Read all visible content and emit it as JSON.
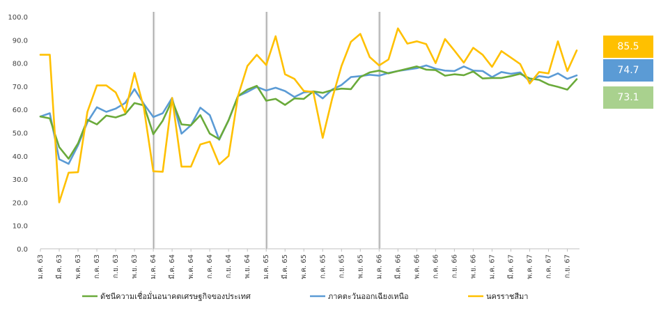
{
  "chart_data": {
    "type": "line",
    "ylim": [
      0,
      100
    ],
    "yticks": [
      "0.0",
      "10.0",
      "20.0",
      "30.0",
      "40.0",
      "50.0",
      "60.0",
      "70.0",
      "80.0",
      "90.0",
      "100.0"
    ],
    "x": [
      "ม.ค. 63",
      "ก.พ. 63",
      "มี.ค. 63",
      "เม.ย. 63",
      "พ.ค. 63",
      "มิ.ย. 63",
      "ก.ค. 63",
      "ส.ค. 63",
      "ก.ย. 63",
      "ต.ค. 63",
      "พ.ย. 63",
      "ธ.ค. 63",
      "ม.ค. 64",
      "ก.พ. 64",
      "มี.ค. 64",
      "เม.ย. 64",
      "พ.ค. 64",
      "มิ.ย. 64",
      "ก.ค. 64",
      "ส.ค. 64",
      "ก.ย. 64",
      "ต.ค. 64",
      "พ.ย. 64",
      "ธ.ค. 64",
      "ม.ค. 65",
      "ก.พ. 65",
      "มี.ค. 65",
      "เม.ย. 65",
      "พ.ค. 65",
      "มิ.ย. 65",
      "ก.ค. 65",
      "ส.ค. 65",
      "ก.ย. 65",
      "ต.ค. 65",
      "พ.ย. 65",
      "ธ.ค. 65",
      "ม.ค. 66",
      "ก.พ. 66",
      "มี.ค. 66",
      "เม.ย. 66",
      "พ.ค. 66",
      "มิ.ย. 66",
      "ก.ค. 66",
      "ส.ค. 66",
      "ก.ย. 66",
      "ต.ค. 66",
      "พ.ย. 66",
      "ธ.ค. 66",
      "ม.ค. 67",
      "ก.พ. 67",
      "มี.ค. 67",
      "เม.ย. 67",
      "พ.ค. 67",
      "มิ.ย. 67",
      "ก.ค. 67",
      "ส.ค. 67",
      "ก.ย. 67",
      "ต.ค. 67"
    ],
    "xtick_labels": [
      "ม.ค. 63",
      "มี.ค. 63",
      "พ.ค. 63",
      "ก.ค. 63",
      "ก.ย. 63",
      "พ.ย. 63",
      "ม.ค. 64",
      "มี.ค. 64",
      "พ.ค. 64",
      "ก.ค. 64",
      "ก.ย. 64",
      "พ.ย. 64",
      "ม.ค. 65",
      "มี.ค. 65",
      "พ.ค. 65",
      "ก.ค. 65",
      "ก.ย. 65",
      "พ.ย. 65",
      "ม.ค. 66",
      "มี.ค. 66",
      "พ.ค. 66",
      "ก.ค. 66",
      "ก.ย. 66",
      "พ.ย. 66",
      "ม.ค. 67",
      "มี.ค. 67",
      "พ.ค. 67",
      "ก.ค. 67",
      "ก.ย. 67"
    ],
    "year_separators": [
      "ม.ค. 64",
      "ม.ค. 65",
      "ม.ค. 66"
    ],
    "series": [
      {
        "name": "ดัชนีความเชื่อมั่นอนาคตเศรษฐกิจของประเทศ",
        "color": "#6AAA3A",
        "values": [
          57.0,
          56.2,
          43.8,
          38.8,
          45.4,
          55.6,
          53.6,
          57.4,
          56.6,
          58.0,
          62.8,
          61.8,
          49.4,
          55.2,
          64.0,
          53.6,
          53.2,
          57.6,
          49.6,
          47.2,
          55.4,
          65.8,
          68.6,
          70.2,
          63.8,
          64.6,
          62.0,
          64.8,
          64.6,
          67.8,
          67.2,
          68.4,
          69.0,
          68.8,
          74.0,
          76.0,
          76.8,
          75.6,
          76.6,
          77.6,
          78.6,
          77.2,
          77.0,
          74.6,
          75.2,
          74.8,
          76.4,
          73.4,
          73.6,
          73.6,
          74.4,
          75.4,
          73.4,
          72.8,
          70.8,
          69.8,
          68.6,
          73.1
        ]
      },
      {
        "name": "ภาคตะวันออกเฉียงเหนือ",
        "color": "#5B9BD5",
        "values": [
          57.0,
          58.4,
          38.6,
          36.6,
          44.6,
          54.6,
          61.0,
          59.0,
          60.4,
          62.8,
          68.8,
          62.4,
          56.8,
          58.4,
          65.0,
          49.6,
          53.2,
          60.8,
          57.6,
          47.0,
          55.4,
          65.8,
          67.6,
          69.8,
          68.2,
          69.4,
          68.0,
          65.4,
          67.4,
          67.8,
          64.8,
          68.6,
          70.6,
          74.0,
          74.4,
          75.0,
          74.6,
          75.8,
          76.6,
          77.2,
          77.8,
          79.0,
          77.6,
          76.8,
          76.6,
          78.6,
          76.8,
          76.6,
          74.0,
          76.2,
          75.4,
          76.0,
          72.2,
          74.4,
          73.8,
          75.6,
          73.2,
          74.7
        ]
      },
      {
        "name": "นครราชสีมา",
        "color": "#FFC000",
        "values": [
          83.6,
          83.6,
          20.0,
          32.8,
          33.0,
          59.0,
          70.4,
          70.4,
          67.4,
          58.8,
          75.8,
          60.6,
          33.4,
          33.2,
          65.0,
          35.4,
          35.4,
          45.0,
          46.2,
          36.4,
          40.0,
          65.8,
          78.8,
          83.6,
          79.2,
          91.6,
          75.2,
          73.2,
          68.0,
          67.6,
          47.8,
          64.6,
          78.8,
          89.2,
          92.6,
          82.6,
          79.0,
          81.6,
          95.0,
          88.4,
          89.4,
          88.2,
          80.0,
          90.4,
          85.4,
          80.2,
          86.6,
          83.6,
          78.4,
          85.2,
          82.4,
          79.6,
          71.2,
          76.2,
          75.6,
          89.4,
          76.6,
          85.5
        ]
      }
    ],
    "latest_badges": [
      {
        "value": "85.5",
        "color": "#FFC000"
      },
      {
        "value": "74.7",
        "color": "#5B9BD5"
      },
      {
        "value": "73.1",
        "color": "#A9D18E"
      }
    ],
    "grid": false,
    "legend_position": "bottom"
  }
}
